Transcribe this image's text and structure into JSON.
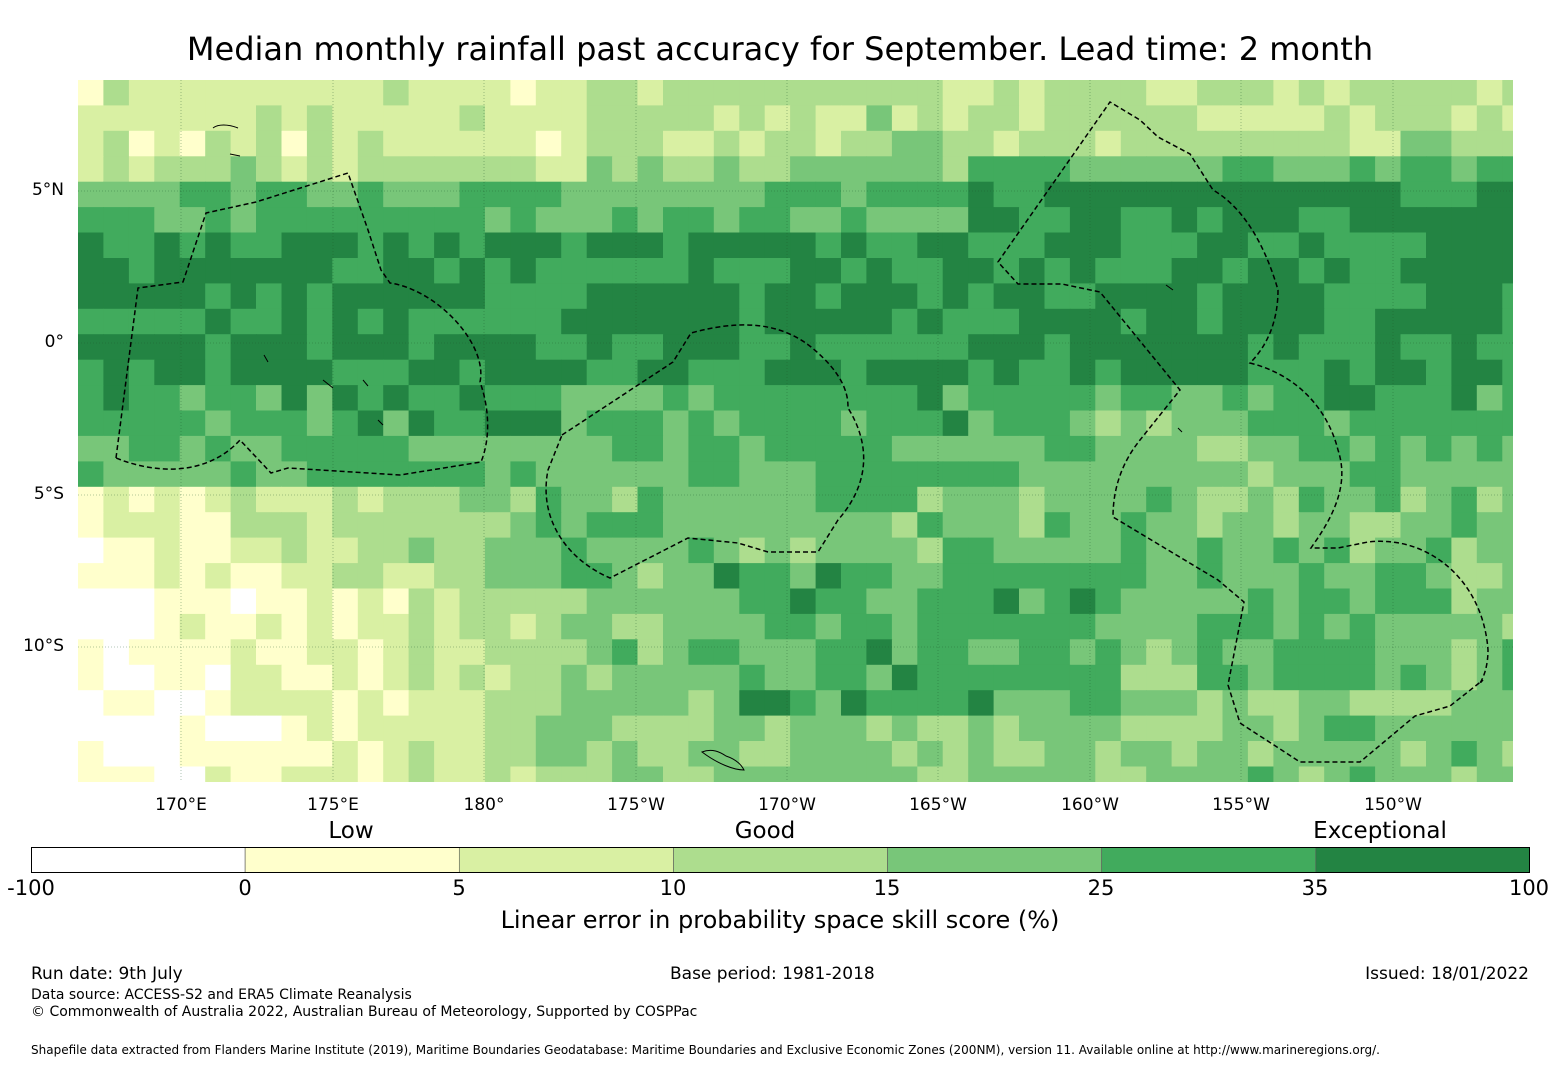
{
  "title": "Median monthly rainfall past accuracy for September. Lead time: 2 month",
  "map": {
    "lon_range": [
      166,
      213
    ],
    "lat_range": [
      -14.5,
      8.5
    ],
    "lat_ticks": [
      {
        "label": "5°N",
        "lat": 5
      },
      {
        "label": "0°",
        "lat": 0
      },
      {
        "label": "5°S",
        "lat": -5
      },
      {
        "label": "10°S",
        "lat": -10
      }
    ],
    "lon_ticks": [
      {
        "label": "170°E",
        "lon": 170
      },
      {
        "label": "175°E",
        "lon": 175
      },
      {
        "label": "180°",
        "lon": 180
      },
      {
        "label": "175°W",
        "lon": 185
      },
      {
        "label": "170°W",
        "lon": 190
      },
      {
        "label": "165°W",
        "lon": 195
      },
      {
        "label": "160°W",
        "lon": 200
      },
      {
        "label": "155°W",
        "lon": 205
      },
      {
        "label": "150°W",
        "lon": 210
      }
    ]
  },
  "legend": {
    "categories": [
      {
        "label": "Low",
        "value": 2.5
      },
      {
        "label": "Good",
        "value": 12.5
      },
      {
        "label": "Exceptional",
        "value": 65
      }
    ],
    "bounds": [
      "-100",
      "0",
      "5",
      "10",
      "15",
      "25",
      "35",
      "100"
    ],
    "colors": [
      "#ffffff",
      "#ffffcc",
      "#d9f0a3",
      "#addd8e",
      "#78c679",
      "#41ab5d",
      "#238443"
    ],
    "label": "Linear error in probability space skill score (%)"
  },
  "footer": {
    "run_date": "Run date: 9th July",
    "base_period": "Base period: 1981-2018",
    "issued": "Issued: 18/01/2022",
    "data_source": "Data source: ACCESS-S2 and ERA5 Climate Reanalysis",
    "copyright": "© Commonwealth of Australia 2022, Australian Bureau of Meteorology, Supported by COSPPac",
    "shapefile": "Shapefile data extracted from Flanders Marine Institute (2019), Maritime Boundaries Geodatabase: Maritime Boundaries and Exclusive Economic Zones (200NM), version 11. Available online at http://www.marineregions.org/."
  }
}
